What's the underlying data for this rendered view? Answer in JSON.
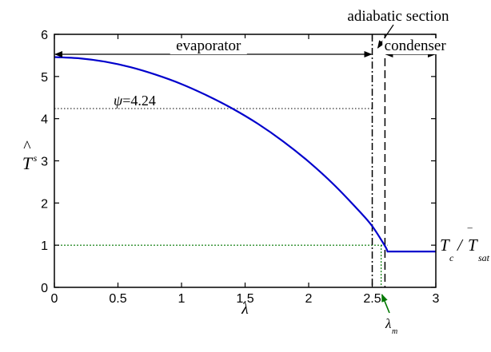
{
  "chart_data": {
    "type": "line",
    "xlabel": "λ",
    "ylabel_symbol": "T",
    "ylabel_hat": "^",
    "ylabel_sub": "s",
    "xlim": [
      0,
      3
    ],
    "ylim": [
      0,
      6
    ],
    "x_ticks": [
      0,
      0.5,
      1,
      1.5,
      2,
      2.5,
      3
    ],
    "x_tick_labels": [
      "0",
      "0.5",
      "1",
      "1.5",
      "2",
      "2.5",
      "3"
    ],
    "y_ticks": [
      0,
      1,
      2,
      3,
      4,
      5,
      6
    ],
    "y_tick_labels": [
      "0",
      "1",
      "2",
      "3",
      "4",
      "5",
      "6"
    ],
    "grid": false,
    "series": [
      {
        "color": "#0000cc",
        "x": [
          0,
          0.2,
          0.4,
          0.6,
          0.8,
          1.0,
          1.2,
          1.4,
          1.6,
          1.8,
          2.0,
          2.2,
          2.4,
          2.5,
          2.6,
          2.62,
          3.0
        ],
        "y": [
          5.46,
          5.43,
          5.35,
          5.22,
          5.04,
          4.82,
          4.55,
          4.24,
          3.88,
          3.46,
          2.98,
          2.43,
          1.8,
          1.45,
          0.98,
          0.85,
          0.85
        ]
      }
    ],
    "reference_lines": {
      "psi_level": 4.24,
      "psi_x_end": 2.5,
      "tc_level": 1.0,
      "tc_x_end": 2.62,
      "evaporator_end": 2.5,
      "condenser_start": 2.6,
      "lambda_m": 2.57
    },
    "annotations": {
      "evaporator": "evaporator",
      "condenser": "condenser",
      "adiabatic": "adiabatic section",
      "psi_symbol": "ψ",
      "psi_value": "=4.24",
      "tc_T": "T",
      "tc_c": "c",
      "tc_slash": "/",
      "tc_Tbar": "T",
      "tc_bar": "‾",
      "tc_sat": "sat",
      "lambda_m_symbol": "λ",
      "lambda_m_sub": "m",
      "lambda_m_color": "#007700"
    }
  }
}
